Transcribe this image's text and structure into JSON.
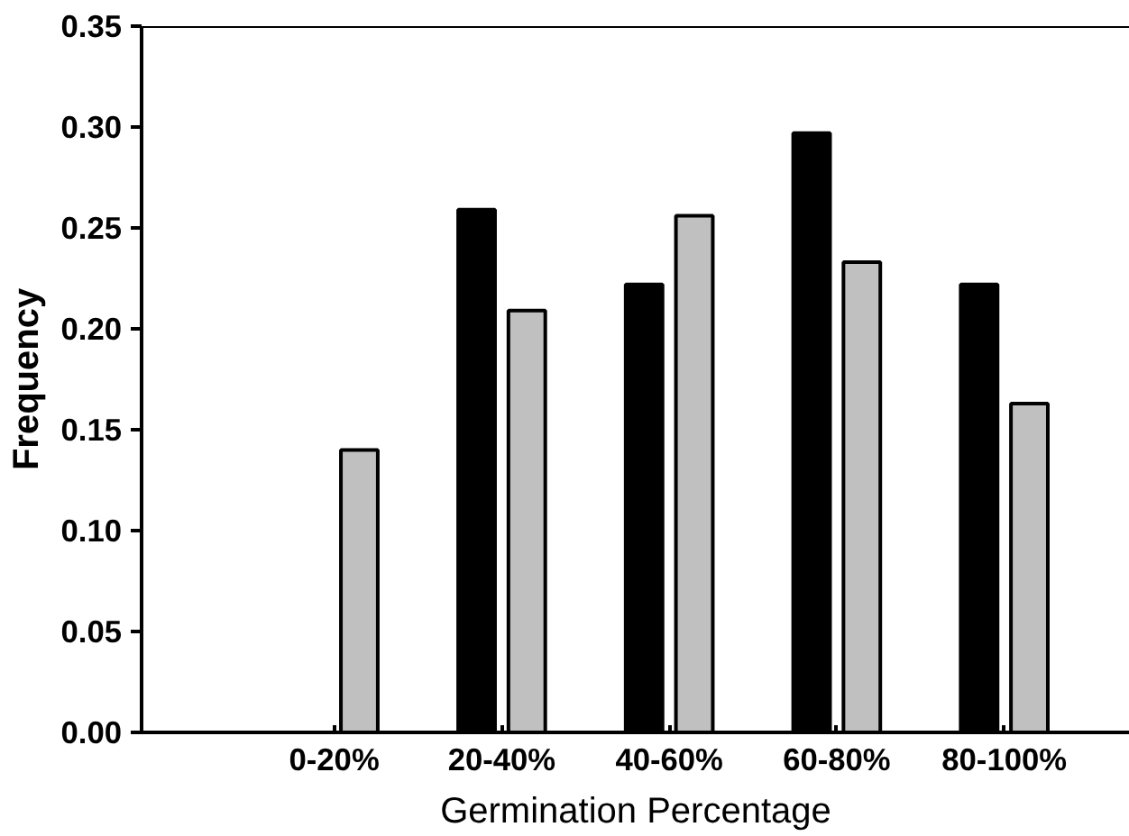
{
  "chart_data": {
    "type": "bar",
    "xlabel": "Germination Percentage",
    "ylabel": "Frequency",
    "categories": [
      "0-20%",
      "20-40%",
      "40-60%",
      "60-80%",
      "80-100%"
    ],
    "series": [
      {
        "color": "#000000",
        "values": [
          0,
          0.259,
          0.222,
          0.297,
          0.222
        ]
      },
      {
        "color": "#c0c0c0",
        "values": [
          0.14,
          0.209,
          0.256,
          0.233,
          0.163
        ]
      }
    ],
    "ylim": [
      0,
      0.35
    ],
    "yticks": [
      {
        "value": 0,
        "label": "0.00"
      },
      {
        "value": 0.05,
        "label": "0.05"
      },
      {
        "value": 0.1,
        "label": "0.10"
      },
      {
        "value": 0.15,
        "label": "0.15"
      },
      {
        "value": 0.2,
        "label": "0.20"
      },
      {
        "value": 0.25,
        "label": "0.25"
      },
      {
        "value": 0.3,
        "label": "0.30"
      },
      {
        "value": 0.35,
        "label": "0.35"
      }
    ],
    "grid": false
  }
}
